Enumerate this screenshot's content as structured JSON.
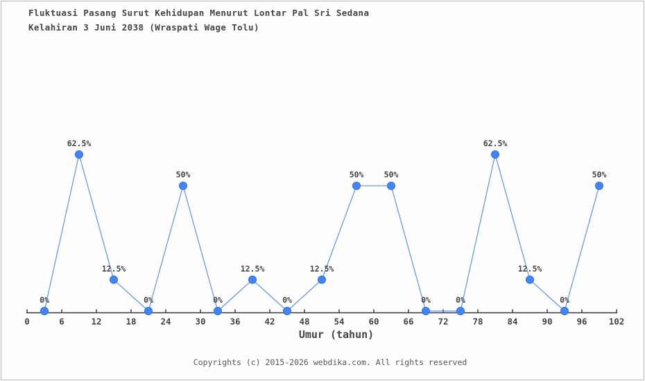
{
  "title": {
    "line1": "Fluktuasi Pasang Surut Kehidupan Menurut Lontar Pal Sri Sedana",
    "line2": "Kelahiran 3 Juni 2038 (Wraspati Wage Tolu)"
  },
  "chart_data": {
    "type": "line",
    "title": "Fluktuasi Pasang Surut Kehidupan Menurut Lontar Pal Sri Sedana Kelahiran 3 Juni 2038 (Wraspati Wage Tolu)",
    "xlabel": "Umur (tahun)",
    "ylabel": "",
    "x": [
      3,
      9,
      15,
      21,
      27,
      33,
      39,
      45,
      51,
      57,
      63,
      69,
      75,
      81,
      87,
      93,
      99
    ],
    "values": [
      0,
      62.5,
      12.5,
      0,
      50,
      0,
      12.5,
      0,
      12.5,
      50,
      50,
      0,
      0,
      62.5,
      12.5,
      0,
      50
    ],
    "point_labels": [
      "0%",
      "62.5%",
      "12.5%",
      "0%",
      "50%",
      "0%",
      "12.5%",
      "0%",
      "12.5%",
      "50%",
      "50%",
      "0%",
      "0%",
      "62.5%",
      "12.5%",
      "0%",
      "50%"
    ],
    "x_ticks": [
      0,
      6,
      12,
      18,
      24,
      30,
      36,
      42,
      48,
      54,
      60,
      66,
      72,
      78,
      84,
      90,
      96,
      102
    ],
    "xlim": [
      0,
      102
    ],
    "ylim": [
      0,
      70
    ],
    "grid": false,
    "legend": "none",
    "colors": {
      "marker": "#4285f4",
      "marker_edge": "#2f6fe0",
      "line": "#5b92ea",
      "axis": "#3a3a3a",
      "text": "#444444"
    }
  },
  "footer": {
    "copyright": "Copyrights (c) 2015-2026 webdika.com. All rights reserved"
  }
}
